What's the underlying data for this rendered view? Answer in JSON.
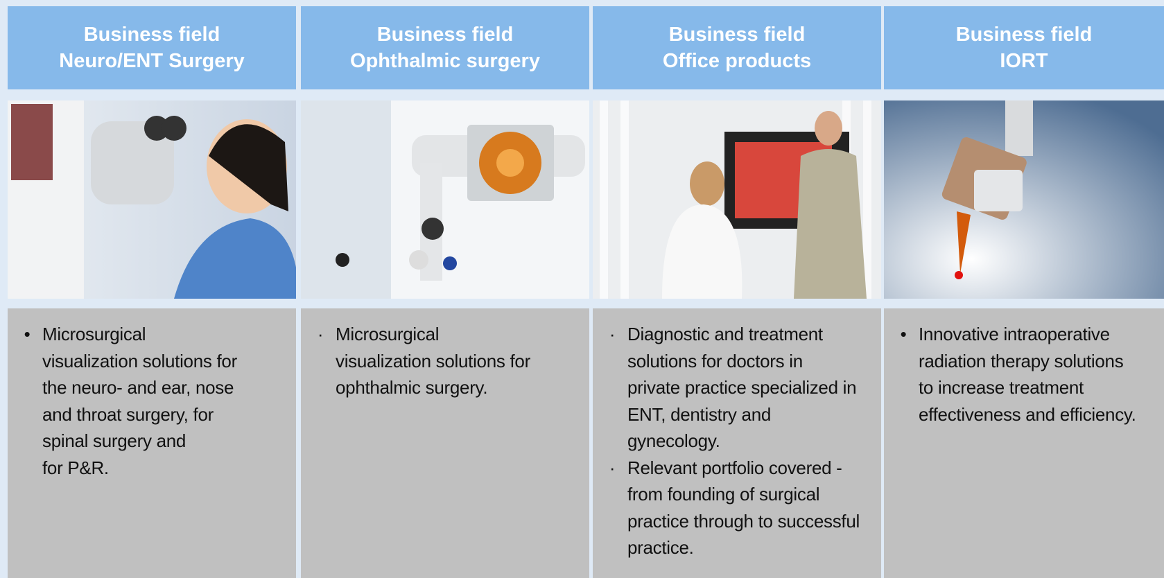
{
  "columns": [
    {
      "title": [
        "Business field",
        "Neuro/ENT Surgery"
      ],
      "bullets": [
        [
          "Microsurgical",
          "visualization solutions for",
          "the neuro- and ear, nose",
          "and throat surgery, for",
          "spinal surgery and",
          "for P&R."
        ]
      ]
    },
    {
      "title": [
        "Business field",
        "Ophthalmic surgery"
      ],
      "bullets": [
        [
          "Microsurgical",
          "visualization solutions for",
          "ophthalmic surgery."
        ]
      ]
    },
    {
      "title": [
        "Business field",
        "Office products"
      ],
      "bullets": [
        [
          "Diagnostic and treatment",
          "solutions for doctors in",
          "private practice specialized in",
          "ENT, dentistry and",
          "gynecology."
        ],
        [
          "Relevant portfolio covered -",
          "from founding of surgical",
          "practice through to successful",
          "practice."
        ]
      ]
    },
    {
      "title": [
        "Business field",
        "IORT"
      ],
      "bullets": [
        [
          "Innovative intraoperative",
          "radiation therapy solutions",
          "to increase treatment",
          "effectiveness and efficiency."
        ]
      ]
    }
  ]
}
